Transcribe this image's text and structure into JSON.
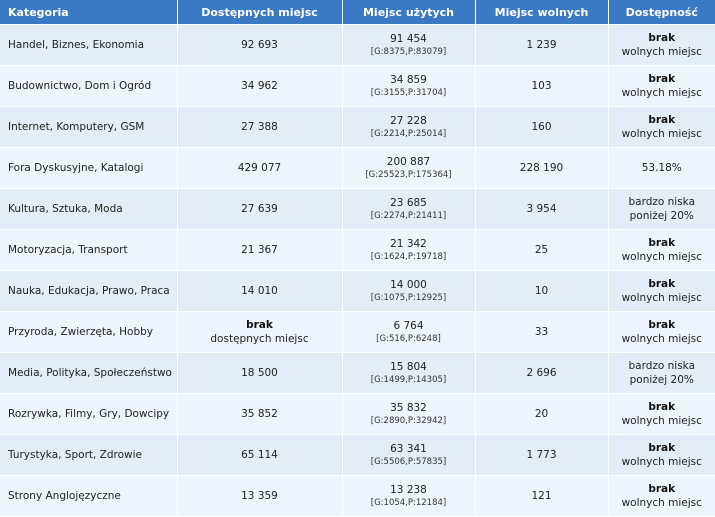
{
  "headers": [
    "Kategoria",
    "Dostępnych miejsc",
    "Miejsc użytych",
    "Miejsc wolnych",
    "Dostępność"
  ],
  "rows": [
    {
      "category": "Handel, Biznes, Ekonomia",
      "available": "92 693",
      "available_sub": "",
      "used": "91 454",
      "used_detail": "[G:8375,P:83079]",
      "free": "1 239",
      "status_main": "brak",
      "status_sub": "wolnych miejsc"
    },
    {
      "category": "Budownictwo, Dom i Ogród",
      "available": "34 962",
      "available_sub": "",
      "used": "34 859",
      "used_detail": "[G:3155,P:31704]",
      "free": "103",
      "status_main": "brak",
      "status_sub": "wolnych miejsc"
    },
    {
      "category": "Internet, Komputery, GSM",
      "available": "27 388",
      "available_sub": "",
      "used": "27 228",
      "used_detail": "[G:2214,P:25014]",
      "free": "160",
      "status_main": "brak",
      "status_sub": "wolnych miejsc"
    },
    {
      "category": "Fora Dyskusyjne, Katalogi",
      "available": "429 077",
      "available_sub": "",
      "used": "200 887",
      "used_detail": "[G:25523,P:175364]",
      "free": "228 190",
      "status_main": "",
      "status_sub": "53.18%"
    },
    {
      "category": "Kultura, Sztuka, Moda",
      "available": "27 639",
      "available_sub": "",
      "used": "23 685",
      "used_detail": "[G:2274,P:21411]",
      "free": "3 954",
      "status_main": "",
      "status_sub": "bardzo niska poniżej 20%"
    },
    {
      "category": "Motoryzacja, Transport",
      "available": "21 367",
      "available_sub": "",
      "used": "21 342",
      "used_detail": "[G:1624,P:19718]",
      "free": "25",
      "status_main": "brak",
      "status_sub": "wolnych miejsc"
    },
    {
      "category": "Nauka, Edukacja, Prawo, Praca",
      "available": "14 010",
      "available_sub": "",
      "used": "14 000",
      "used_detail": "[G:1075,P:12925]",
      "free": "10",
      "status_main": "brak",
      "status_sub": "wolnych miejsc"
    },
    {
      "category": "Przyroda, Zwierzęta, Hobby",
      "available": "brak",
      "available_sub": "dostępnych miejsc",
      "used": "6 764",
      "used_detail": "[G:516,P:6248]",
      "free": "33",
      "status_main": "brak",
      "status_sub": "wolnych miejsc"
    },
    {
      "category": "Media, Polityka, Społeczeństwo",
      "available": "18 500",
      "available_sub": "",
      "used": "15 804",
      "used_detail": "[G:1499,P:14305]",
      "free": "2 696",
      "status_main": "",
      "status_sub": "bardzo niska poniżej 20%"
    },
    {
      "category": "Rozrywka, Filmy, Gry, Dowcipy",
      "available": "35 852",
      "available_sub": "",
      "used": "35 832",
      "used_detail": "[G:2890,P:32942]",
      "free": "20",
      "status_main": "brak",
      "status_sub": "wolnych miejsc"
    },
    {
      "category": "Turystyka, Sport, Zdrowie",
      "available": "65 114",
      "available_sub": "",
      "used": "63 341",
      "used_detail": "[G:5506,P:57835]",
      "free": "1 773",
      "status_main": "brak",
      "status_sub": "wolnych miejsc"
    },
    {
      "category": "Strony Anglojęzyczne",
      "available": "13 359",
      "available_sub": "",
      "used": "13 238",
      "used_detail": "[G:1054,P:12184]",
      "free": "121",
      "status_main": "brak",
      "status_sub": "wolnych miejsc"
    }
  ]
}
